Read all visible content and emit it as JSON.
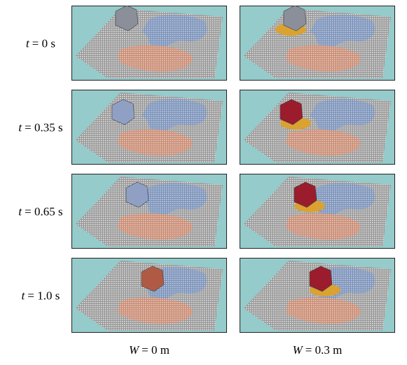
{
  "rows": [
    {
      "variable": "t",
      "value": "= 0 s"
    },
    {
      "variable": "t",
      "value": "= 0.35 s"
    },
    {
      "variable": "t",
      "value": "= 0.65 s"
    },
    {
      "variable": "t",
      "value": "= 1.0 s"
    }
  ],
  "columns": [
    {
      "variable": "W",
      "value": "= 0 m"
    },
    {
      "variable": "W",
      "value": "= 0.3 m"
    }
  ]
}
